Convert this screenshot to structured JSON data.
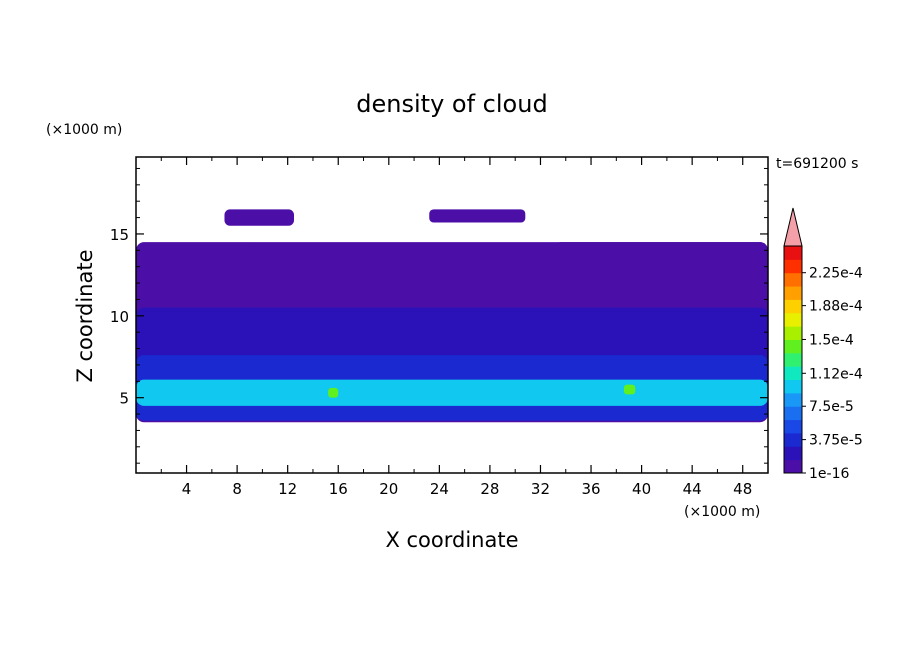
{
  "chart_data": {
    "type": "heatmap",
    "title": "density of cloud",
    "xlabel": "X coordinate",
    "ylabel": "Z coordinate",
    "x_unit": "(×1000 m)",
    "y_unit": "(×1000 m)",
    "time_label": "t=691200 s",
    "xlim": [
      0,
      50
    ],
    "ylim": [
      0.4,
      19.7
    ],
    "x_ticks": [
      4,
      8,
      12,
      16,
      20,
      24,
      28,
      32,
      36,
      40,
      44,
      48
    ],
    "y_ticks": [
      5,
      10,
      15
    ],
    "colorbar": {
      "labels": [
        {
          "value": 1e-16,
          "text": "1e-16"
        },
        {
          "value": 3.75e-05,
          "text": "3.75e-5"
        },
        {
          "value": 7.5e-05,
          "text": "7.5e-5"
        },
        {
          "value": 0.000112,
          "text": "1.12e-4"
        },
        {
          "value": 0.00015,
          "text": "1.5e-4"
        },
        {
          "value": 0.000188,
          "text": "1.88e-4"
        },
        {
          "value": 0.000225,
          "text": "2.25e-4"
        }
      ],
      "levels_colors": [
        "#4b0fa8",
        "#2a12b8",
        "#1a2ad0",
        "#1a48e6",
        "#1a6ef0",
        "#1a98f8",
        "#10c8f0",
        "#10e8c0",
        "#30f070",
        "#60f020",
        "#a8f000",
        "#e8f000",
        "#ffd000",
        "#ffa000",
        "#ff7000",
        "#ff3000",
        "#e81010"
      ],
      "overflow_color": "#f4a0a8"
    },
    "cloud_regions": [
      {
        "name": "main-cloud-deck",
        "x_range": [
          0,
          50
        ],
        "z_range": [
          3.5,
          14.5
        ],
        "level": 0
      },
      {
        "name": "upper-patch-8-13km",
        "x_range": [
          7,
          12.5
        ],
        "z_range": [
          15.5,
          16.5
        ],
        "level": 0
      },
      {
        "name": "upper-patch-24-31km",
        "x_range": [
          23.2,
          30.8
        ],
        "z_range": [
          15.7,
          16.5
        ],
        "level": 0
      },
      {
        "name": "upper-layer-33-50km",
        "x_range": [
          33,
          50
        ],
        "z_range": [
          12,
          14.5
        ],
        "level": 0
      },
      {
        "name": "mid-layer",
        "x_range": [
          0,
          50
        ],
        "z_range": [
          6.5,
          10.5
        ],
        "level": 1
      },
      {
        "name": "lower-layer",
        "x_range": [
          0,
          50
        ],
        "z_range": [
          3.6,
          7.6
        ],
        "level": 2
      },
      {
        "name": "dense-core-band",
        "x_range": [
          0,
          50
        ],
        "z_range": [
          4.5,
          6.1
        ],
        "level": 6
      },
      {
        "name": "peak-core-16km",
        "x_range": [
          15.2,
          16.0
        ],
        "z_range": [
          5.0,
          5.6
        ],
        "level": 9
      },
      {
        "name": "peak-core-39km",
        "x_range": [
          38.6,
          39.5
        ],
        "z_range": [
          5.2,
          5.8
        ],
        "level": 9
      }
    ]
  }
}
